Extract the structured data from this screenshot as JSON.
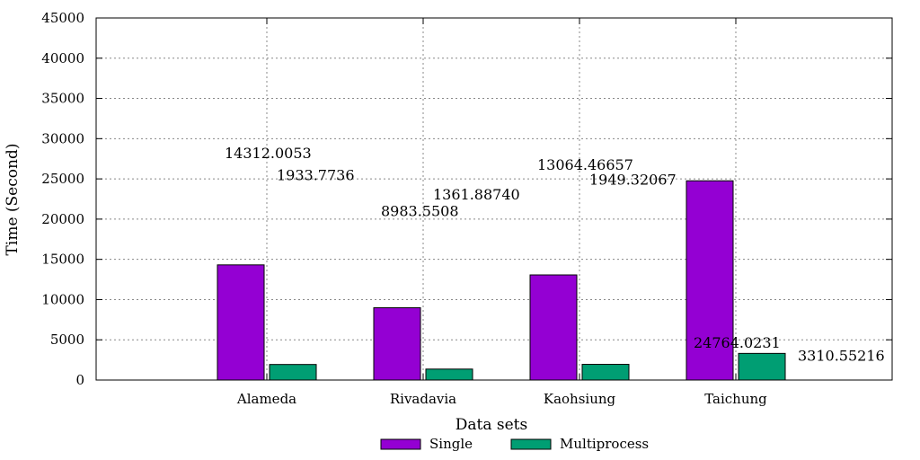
{
  "chart_data": {
    "type": "bar",
    "title": "",
    "xlabel": "Data sets",
    "ylabel": "Time (Second)",
    "ylim": [
      0,
      45000
    ],
    "yticks": [
      0,
      5000,
      10000,
      15000,
      20000,
      25000,
      30000,
      35000,
      40000,
      45000
    ],
    "categories": [
      "Alameda",
      "Rivadavia",
      "Kaohsiung",
      "Taichung"
    ],
    "grid": true,
    "legend_position": "bottom",
    "series": [
      {
        "name": "Single",
        "color": "#9400d3",
        "values": [
          14312.0053,
          8983.5508,
          13064.46657,
          24764.0231
        ],
        "labels": [
          "14312.0053",
          "8983.5508",
          "13064.46657",
          "24764.0231"
        ]
      },
      {
        "name": "Multiprocess",
        "color": "#009e73",
        "values": [
          1933.7736,
          1361.8874,
          1949.32067,
          3310.55216
        ],
        "labels": [
          "1933.7736",
          "1361.88740",
          "1949.32067",
          "3310.55216"
        ]
      }
    ]
  }
}
